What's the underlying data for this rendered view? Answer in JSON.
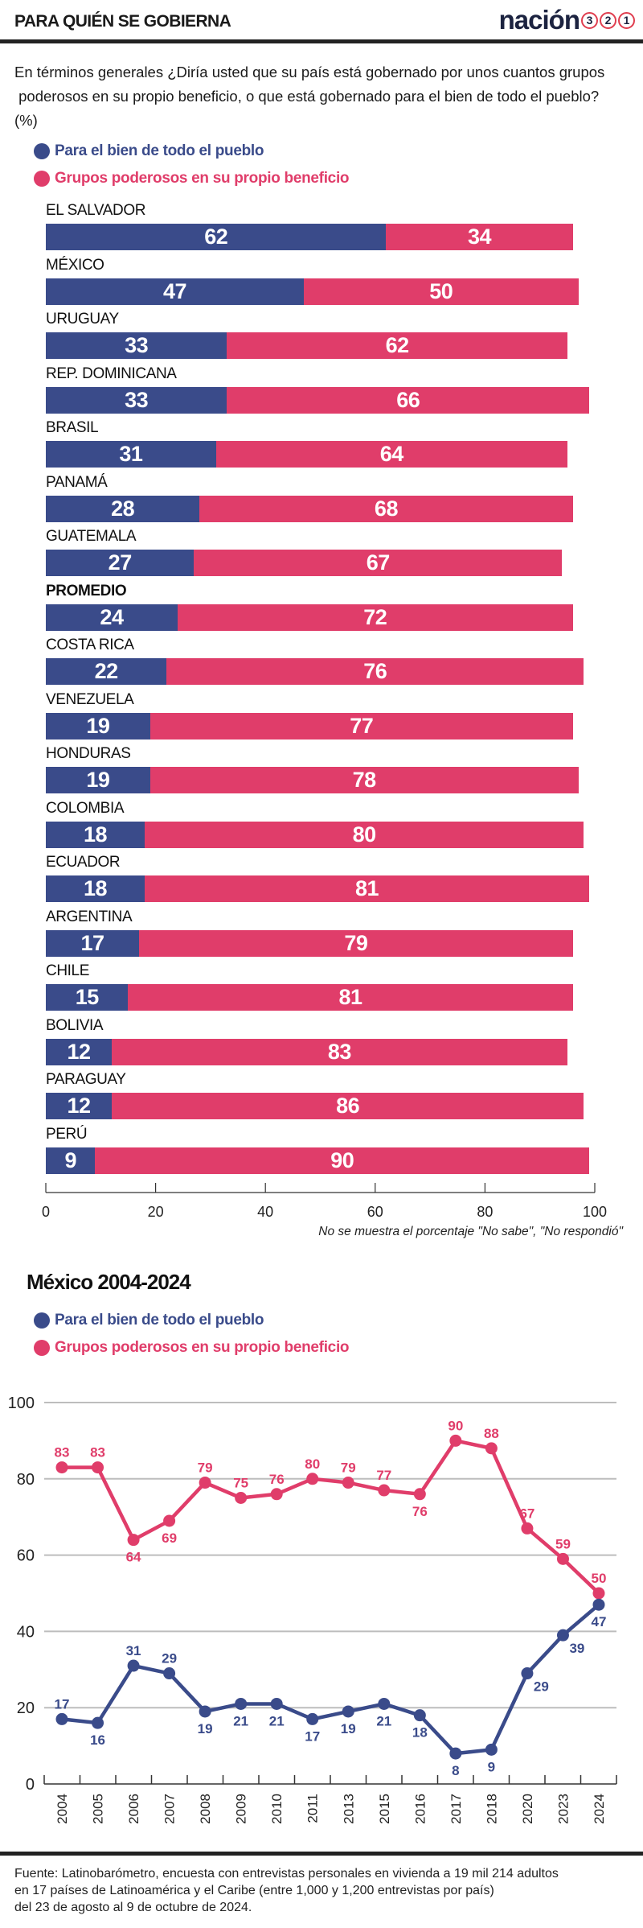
{
  "header": {
    "title": "PARA QUIÉN SE GOBIERNA",
    "logo_word": "nación",
    "logo_numbers": [
      "3",
      "2",
      "1"
    ]
  },
  "question": {
    "line1": "En términos generales ¿Diría usted que su país está gobernado por unos cuantos grupos",
    "line2": " poderosos en su propio beneficio, o que está gobernado para el bien de todo el pueblo?",
    "unit": "(%)"
  },
  "colors": {
    "pueblo": "#3a4b8a",
    "grupos": "#e03d6a",
    "grid": "#bdbdbd",
    "axis": "#333333"
  },
  "legend": [
    {
      "label": "Para el bien de todo el pueblo",
      "key": "pueblo"
    },
    {
      "label": "Grupos poderosos en su propio beneficio",
      "key": "grupos"
    }
  ],
  "chart_data": [
    {
      "type": "bar",
      "stacked": true,
      "orientation": "horizontal",
      "title": "En términos generales ¿Diría usted que su país está gobernado por unos cuantos grupos poderosos en su propio beneficio, o que está gobernado para el bien de todo el pueblo? (%)",
      "categories": [
        "EL SALVADOR",
        "MÉXICO",
        "URUGUAY",
        "REP. DOMINICANA",
        "BRASIL",
        "PANAMÁ",
        "GUATEMALA",
        "PROMEDIO",
        "COSTA RICA",
        "VENEZUELA",
        "HONDURAS",
        "COLOMBIA",
        "ECUADOR",
        "ARGENTINA",
        "CHILE",
        "BOLIVIA",
        "PARAGUAY",
        "PERÚ"
      ],
      "bold_categories": [
        "PROMEDIO"
      ],
      "series": [
        {
          "name": "Para el bien de todo el pueblo",
          "values": [
            62,
            47,
            33,
            33,
            31,
            28,
            27,
            24,
            22,
            19,
            19,
            18,
            18,
            17,
            15,
            12,
            12,
            9
          ]
        },
        {
          "name": "Grupos poderosos en su propio beneficio",
          "values": [
            34,
            50,
            62,
            66,
            64,
            68,
            67,
            72,
            76,
            77,
            78,
            80,
            81,
            79,
            81,
            83,
            86,
            90
          ]
        }
      ],
      "xlim": [
        0,
        100
      ],
      "xticks": [
        "0",
        "20",
        "40",
        "60",
        "80",
        "100"
      ],
      "xtick_values": [
        0,
        20,
        40,
        60,
        80,
        100
      ],
      "note": "No se muestra el porcentaje \"No sabe\", \"No respondió\"",
      "legend_position": "top-left"
    },
    {
      "type": "line",
      "title": "México 2004-2024",
      "x": [
        "2004",
        "2005",
        "2006",
        "2007",
        "2008",
        "2009",
        "2010",
        "2011",
        "2013",
        "2015",
        "2016",
        "2017",
        "2018",
        "2020",
        "2023",
        "2024"
      ],
      "x_full": [
        "2004",
        "2005",
        "2006",
        "2007",
        "2008",
        "2009",
        "2010",
        "2011",
        "2013",
        "2015",
        "2016",
        "2017",
        "2018",
        "2020",
        "2023",
        "2024"
      ],
      "series": [
        {
          "name": "Grupos poderosos en su propio beneficio",
          "key": "grupos",
          "values": [
            83,
            83,
            64,
            69,
            79,
            75,
            76,
            80,
            79,
            77,
            76,
            90,
            88,
            67,
            59,
            50
          ],
          "label_pos": [
            "above",
            "above",
            "below",
            "below",
            "above",
            "above",
            "above",
            "above",
            "above",
            "above",
            "below",
            "above",
            "above",
            "above",
            "above",
            "above"
          ]
        },
        {
          "name": "Para el bien de todo el pueblo",
          "key": "pueblo",
          "values": [
            17,
            16,
            31,
            29,
            19,
            21,
            21,
            17,
            19,
            21,
            18,
            8,
            9,
            29,
            39,
            47
          ],
          "label_pos": [
            "above",
            "below",
            "above",
            "above",
            "below",
            "below",
            "below",
            "below",
            "below",
            "below",
            "below",
            "below",
            "below",
            "right",
            "right",
            "below"
          ]
        }
      ],
      "ylim": [
        0,
        100
      ],
      "yticks": [
        "0",
        "20",
        "40",
        "60",
        "80",
        "100"
      ],
      "ytick_values": [
        0,
        20,
        40,
        60,
        80,
        100
      ],
      "grid": true,
      "legend_position": "top-left"
    }
  ],
  "chart2": {
    "title": "México 2004-2024"
  },
  "footer": {
    "line1": "Fuente: Latinobarómetro, encuesta con entrevistas personales en vivienda a 19 mil 214 adultos",
    "line2": "en 17 países de Latinoamérica y el Caribe (entre 1,000 y 1,200 entrevistas por país)",
    "line3": "del 23 de agosto al 9 de octubre de 2024."
  }
}
